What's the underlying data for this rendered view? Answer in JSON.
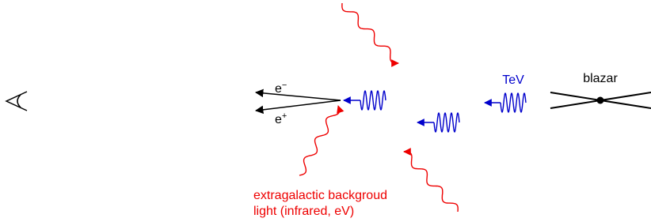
{
  "labels": {
    "blazar": "blazar",
    "tev": "TeV",
    "electron": {
      "base": "e",
      "sup": "−"
    },
    "positron": {
      "base": "e",
      "sup": "+"
    },
    "ebl_line1": "extragalactic backgroud",
    "ebl_line2": "light (infrared, eV)"
  }
}
